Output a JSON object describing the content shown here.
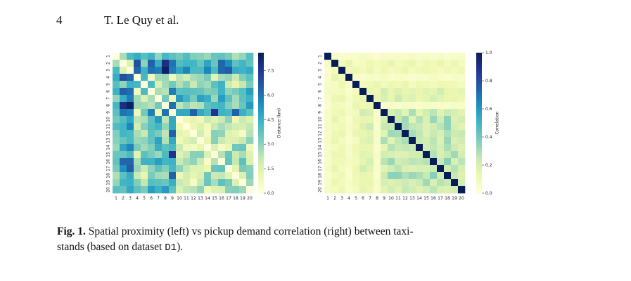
{
  "header": {
    "page_number": "4",
    "running_head": "T. Le Quy et al."
  },
  "caption": {
    "label": "Fig. 1.",
    "text_part1": "Spatial proximity (left) vs pickup demand correlation (right) between taxi-",
    "text_part2": "stands (based on dataset ",
    "dataset_name": "D1",
    "text_end": ")."
  },
  "chart_data": [
    {
      "type": "heatmap",
      "title": "",
      "xlabel": "",
      "ylabel": "",
      "x_ticks": [
        "1",
        "2",
        "3",
        "4",
        "5",
        "6",
        "7",
        "8",
        "9",
        "10",
        "11",
        "12",
        "13",
        "14",
        "15",
        "16",
        "17",
        "18",
        "19",
        "20"
      ],
      "y_ticks": [
        "1",
        "2",
        "3",
        "4",
        "5",
        "6",
        "7",
        "8",
        "9",
        "10",
        "11",
        "12",
        "13",
        "14",
        "15",
        "16",
        "17",
        "18",
        "19",
        "20"
      ],
      "colorbar": {
        "label": "Distance (km)",
        "ticks": [
          0.0,
          1.5,
          3.0,
          4.5,
          6.0,
          7.5
        ],
        "tick_labels": [
          "0.0",
          "1.5",
          "3.0",
          "4.5",
          "6.0",
          "7.5"
        ],
        "range": [
          0,
          8.6
        ],
        "colormap": "YlGnBu"
      },
      "diagonal_value": 0.0,
      "upper_triangle": [
        [
          2.6,
          4.1,
          4.6,
          3.9,
          4.4,
          2.9,
          4.2,
          3.8,
          3.4,
          4.0,
          3.2,
          3.1,
          2.8,
          3.6,
          3.7,
          3.3,
          2.5,
          2.9,
          3.9
        ],
        [
          1.5,
          6.8,
          3.0,
          6.4,
          4.6,
          7.8,
          6.0,
          4.0,
          4.3,
          4.3,
          3.6,
          4.8,
          3.6,
          6.3,
          5.4,
          3.8,
          4.3,
          3.7
        ],
        [
          6.3,
          4.4,
          6.1,
          5.8,
          8.4,
          5.8,
          4.8,
          5.6,
          4.1,
          4.1,
          5.6,
          4.1,
          6.3,
          6.5,
          4.6,
          4.4,
          4.7
        ],
        [
          4.2,
          0.7,
          2.7,
          2.8,
          0.9,
          2.3,
          1.8,
          2.6,
          2.8,
          3.3,
          1.4,
          2.6,
          2.9,
          2.0,
          3.2,
          3.8
        ],
        [
          4.1,
          1.6,
          2.7,
          3.4,
          2.5,
          3.1,
          2.1,
          3.0,
          2.7,
          3.8,
          4.4,
          2.0,
          1.2,
          2.2,
          3.3
        ],
        [
          2.6,
          2.4,
          5.8,
          3.8,
          3.9,
          3.8,
          3.7,
          3.2,
          3.3,
          4.4,
          3.0,
          3.3,
          3.9,
          5.0
        ],
        [
          3.4,
          1.0,
          5.1,
          4.3,
          3.3,
          4.9,
          4.5,
          2.8,
          5.0,
          3.8,
          2.7,
          3.8,
          4.4
        ],
        [
          6.0,
          2.3,
          2.9,
          2.3,
          2.5,
          3.8,
          4.1,
          4.3,
          3.2,
          2.6,
          3.6,
          5.1
        ],
        [
          4.7,
          4.7,
          6.4,
          4.7,
          4.1,
          7.6,
          4.4,
          4.2,
          6.4,
          4.5,
          3.8
        ],
        [
          0.9,
          1.3,
          0.9,
          2.0,
          1.5,
          2.1,
          3.0,
          1.0,
          2.1,
          1.6
        ],
        [
          1.0,
          1.5,
          0.8,
          2.1,
          2.6,
          2.2,
          1.8,
          1.7,
          2.2
        ],
        [
          1.8,
          0.7,
          3.1,
          3.0,
          1.5,
          1.3,
          0.6,
          2.4
        ],
        [
          1.2,
          3.1,
          2.0,
          1.5,
          1.6,
          2.1,
          3.0
        ],
        [
          1.6,
          0.5,
          1.1,
          3.5,
          3.6,
          0.9
        ],
        [
          2.4,
          3.6,
          2.0,
          2.6,
          1.5
        ],
        [
          3.7,
          2.2,
          3.8,
          1.6
        ],
        [
          1.4,
          3.3,
          3.1
        ],
        [
          1.6,
          3.2
        ],
        [
          2.8
        ]
      ]
    },
    {
      "type": "heatmap",
      "title": "",
      "xlabel": "",
      "ylabel": "",
      "x_ticks": [
        "1",
        "2",
        "3",
        "4",
        "5",
        "6",
        "7",
        "8",
        "9",
        "10",
        "11",
        "12",
        "13",
        "14",
        "15",
        "16",
        "17",
        "18",
        "19",
        "20"
      ],
      "y_ticks": [
        "1",
        "2",
        "3",
        "4",
        "5",
        "6",
        "7",
        "8",
        "9",
        "10",
        "11",
        "12",
        "13",
        "14",
        "15",
        "16",
        "17",
        "18",
        "19",
        "20"
      ],
      "colorbar": {
        "label": "Correlation",
        "ticks": [
          0.0,
          0.2,
          0.4,
          0.6,
          0.8,
          1.0
        ],
        "tick_labels": [
          "0.0",
          "0.2",
          "0.4",
          "0.6",
          "0.8",
          "1.0"
        ],
        "range": [
          0,
          1
        ],
        "colormap": "YlGnBu"
      },
      "diagonal_value": 1.0,
      "upper_triangle": [
        [
          0.06,
          0.03,
          0.04,
          0.05,
          0.07,
          0.05,
          0.03,
          0.06,
          0.05,
          0.06,
          0.05,
          0.07,
          0.05,
          0.06,
          0.05,
          0.06,
          0.04,
          0.05,
          0.06
        ],
        [
          0.09,
          0.14,
          0.07,
          0.08,
          0.12,
          0.09,
          0.1,
          0.14,
          0.09,
          0.11,
          0.13,
          0.08,
          0.12,
          0.1,
          0.13,
          0.09,
          0.12,
          0.08
        ],
        [
          0.1,
          0.12,
          0.09,
          0.13,
          0.08,
          0.12,
          0.09,
          0.1,
          0.13,
          0.09,
          0.11,
          0.12,
          0.1,
          0.08,
          0.11,
          0.09,
          0.12
        ],
        [
          0.05,
          0.04,
          0.06,
          0.05,
          0.07,
          0.04,
          0.06,
          0.05,
          0.04,
          0.06,
          0.05,
          0.07,
          0.05,
          0.04,
          0.06,
          0.05
        ],
        [
          0.09,
          0.11,
          0.13,
          0.09,
          0.12,
          0.1,
          0.13,
          0.08,
          0.12,
          0.1,
          0.09,
          0.12,
          0.11,
          0.1,
          0.08
        ],
        [
          0.14,
          0.12,
          0.22,
          0.14,
          0.18,
          0.14,
          0.16,
          0.13,
          0.17,
          0.15,
          0.21,
          0.14,
          0.13,
          0.15
        ],
        [
          0.13,
          0.19,
          0.14,
          0.23,
          0.16,
          0.18,
          0.13,
          0.15,
          0.2,
          0.16,
          0.13,
          0.14,
          0.12
        ],
        [
          0.04,
          0.05,
          0.04,
          0.06,
          0.05,
          0.04,
          0.06,
          0.05,
          0.05,
          0.04,
          0.06,
          0.05
        ],
        [
          0.2,
          0.24,
          0.16,
          0.3,
          0.15,
          0.21,
          0.27,
          0.17,
          0.23,
          0.2,
          0.16
        ],
        [
          0.25,
          0.32,
          0.17,
          0.28,
          0.19,
          0.33,
          0.22,
          0.35,
          0.18,
          0.21
        ],
        [
          0.31,
          0.26,
          0.24,
          0.18,
          0.22,
          0.27,
          0.35,
          0.2,
          0.17
        ],
        [
          0.3,
          0.26,
          0.18,
          0.24,
          0.19,
          0.29,
          0.23,
          0.25
        ],
        [
          0.24,
          0.21,
          0.27,
          0.18,
          0.33,
          0.19,
          0.22
        ],
        [
          0.22,
          0.26,
          0.2,
          0.3,
          0.23,
          0.18
        ],
        [
          0.28,
          0.19,
          0.25,
          0.32,
          0.21
        ],
        [
          0.24,
          0.36,
          0.19,
          0.27
        ],
        [
          0.22,
          0.28,
          0.2
        ],
        [
          0.25,
          0.18
        ],
        [
          0.21
        ]
      ]
    }
  ]
}
